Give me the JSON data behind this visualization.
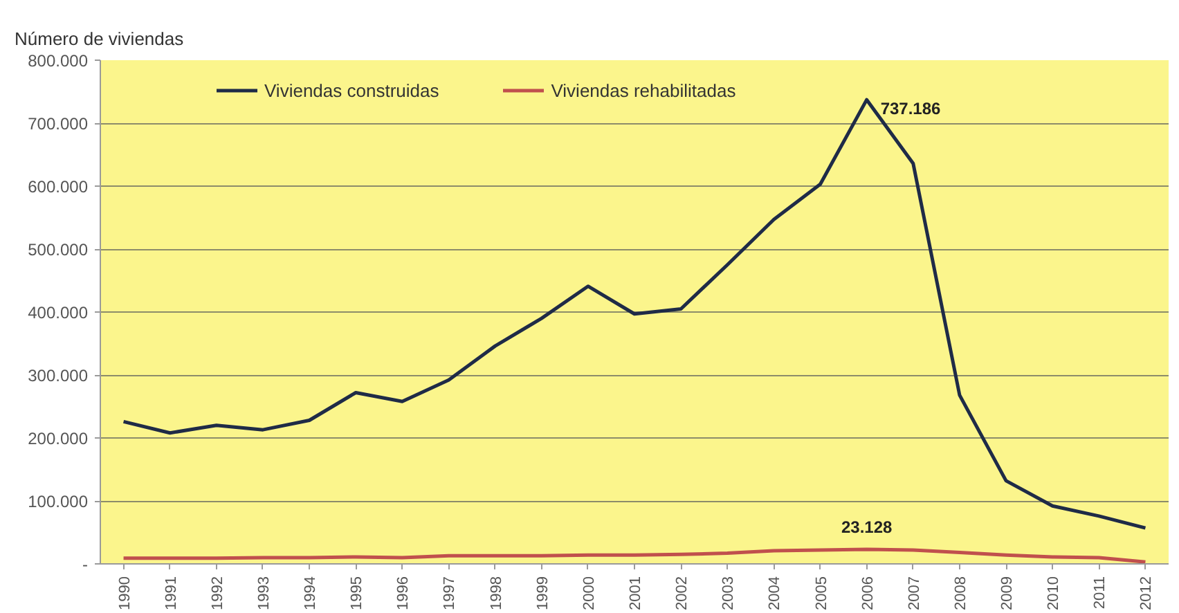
{
  "chart_data": {
    "type": "line",
    "ylabel": "Número de viviendas",
    "categories": [
      "1990",
      "1991",
      "1992",
      "1993",
      "1994",
      "1995",
      "1996",
      "1997",
      "1998",
      "1999",
      "2000",
      "2001",
      "2002",
      "2003",
      "2004",
      "2005",
      "2006",
      "2007",
      "2008",
      "2009",
      "2010",
      "2011",
      "2012"
    ],
    "series": [
      {
        "name": "Viviendas construidas",
        "color": "#1f2b47",
        "values": [
          226000,
          208000,
          220000,
          213000,
          228000,
          272000,
          258000,
          292000,
          346000,
          390000,
          441000,
          397000,
          405000,
          475000,
          547000,
          603000,
          737186,
          636000,
          268000,
          132000,
          92000,
          76000,
          57000
        ]
      },
      {
        "name": "Viviendas rehabilitadas",
        "color": "#c0504d",
        "values": [
          9000,
          9000,
          9000,
          10000,
          10000,
          11000,
          10000,
          13000,
          13000,
          13000,
          14000,
          14000,
          15000,
          17000,
          21000,
          22000,
          23128,
          22000,
          18000,
          14000,
          11000,
          10000,
          3000
        ]
      }
    ],
    "ylim": [
      0,
      800000
    ],
    "yticks": [
      {
        "value": 0,
        "label": "-"
      },
      {
        "value": 100000,
        "label": "100.000"
      },
      {
        "value": 200000,
        "label": "200.000"
      },
      {
        "value": 300000,
        "label": "300.000"
      },
      {
        "value": 400000,
        "label": "400.000"
      },
      {
        "value": 500000,
        "label": "500.000"
      },
      {
        "value": 600000,
        "label": "600.000"
      },
      {
        "value": 700000,
        "label": "700.000"
      },
      {
        "value": 800000,
        "label": "800.000"
      }
    ],
    "grid": "y",
    "legend": "top left",
    "annotations": [
      {
        "text": "737.186",
        "x": "2006",
        "y": 737186
      },
      {
        "text": "23.128",
        "x": "2006",
        "y": 23128
      }
    ]
  }
}
